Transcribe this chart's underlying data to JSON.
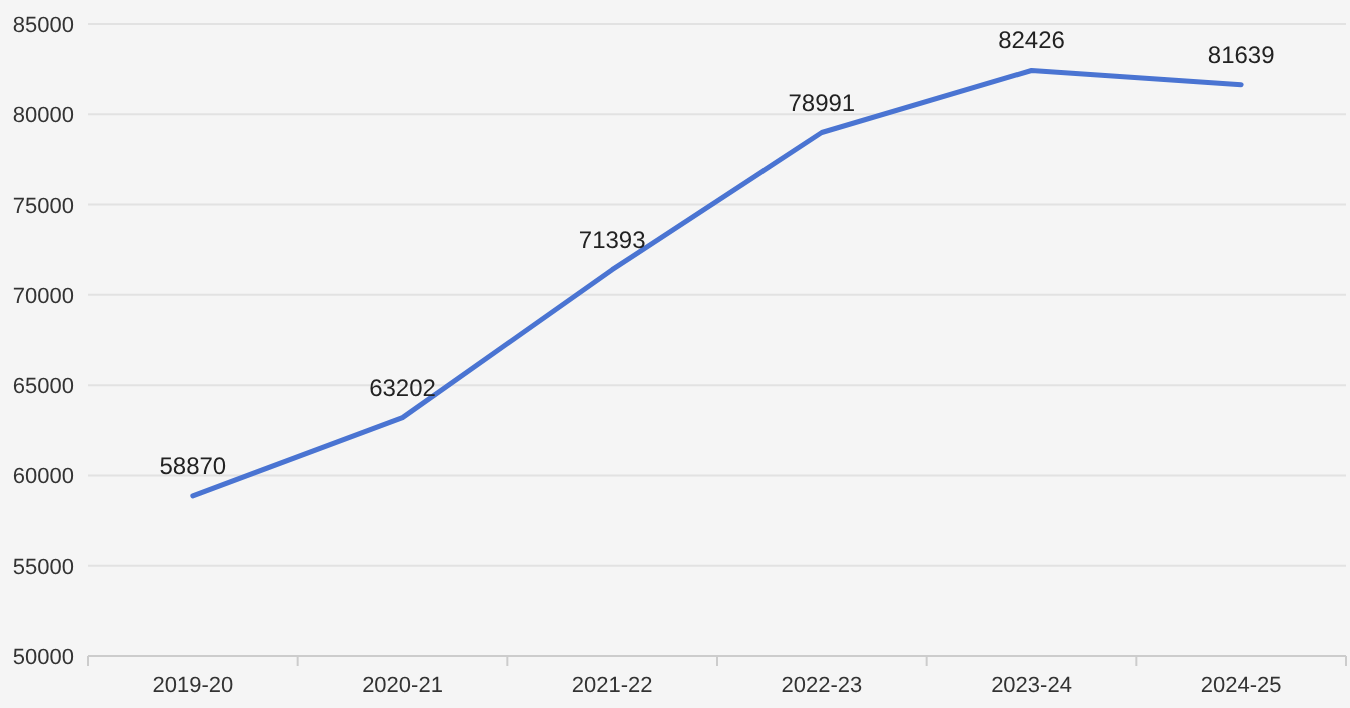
{
  "chart_data": {
    "type": "line",
    "categories": [
      "2019-20",
      "2020-21",
      "2021-22",
      "2022-23",
      "2023-24",
      "2024-25"
    ],
    "series": [
      {
        "color": "#4a74d2",
        "values": [
          58870,
          63202,
          71393,
          78991,
          82426,
          81639
        ]
      }
    ],
    "ylim": [
      50000,
      85000
    ],
    "yticks": [
      50000,
      55000,
      60000,
      65000,
      70000,
      75000,
      80000,
      85000
    ],
    "grid": "y",
    "data_labels": true,
    "marker": "none",
    "line_style": "solid"
  }
}
